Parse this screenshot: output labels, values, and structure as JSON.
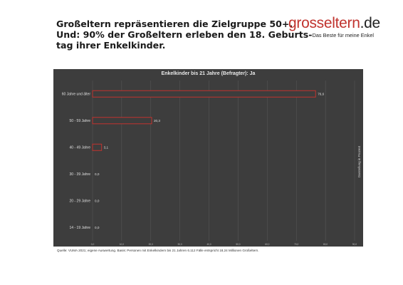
{
  "header": {
    "headline_lines": [
      "Großeltern repräsentieren die Zielgruppe 50+.",
      "Und: 90% der Großeltern erleben den 18. Geburts-",
      "tag ihrer Enkelkinder."
    ]
  },
  "logo": {
    "word": "grosseltern",
    "tld": ".de",
    "tagline": "Das Beste für meine Enkel"
  },
  "chart_data": {
    "type": "bar",
    "orientation": "horizontal",
    "title": "Enkelkinder bis 21 Jahre (Befragter): Ja",
    "categories": [
      "60 Jahre und älter",
      "50 - 59 Jahre",
      "40 - 49 Jahre",
      "30 - 39 Jahre",
      "20 - 29 Jahre",
      "14 - 19 Jahre"
    ],
    "values": [
      76.6,
      20.3,
      3.1,
      0.0,
      0.0,
      0.0
    ],
    "value_labels": [
      "76,6",
      "20,3",
      "3,1",
      "0,0",
      "0,0",
      "0,0"
    ],
    "xlim": [
      0,
      90
    ],
    "x_ticks": [
      "0,0",
      "10,0",
      "20,0",
      "30,0",
      "40,0",
      "50,0",
      "60,0",
      "70,0",
      "80,0",
      "90,0"
    ],
    "side_label": "Darstellung in Prozent",
    "grid": true,
    "colors": {
      "background": "#3d3d3d",
      "bar_outline": "#c0332e",
      "bar_fill": "#3d3d3d",
      "text": "#e0e0e0"
    }
  },
  "footer": {
    "source": "Quelle: VUMA 2021; eigene Auswertung. Basis: Personen mit Enkelkindern bis 21 Jahren  6.112 Fälle entspricht 18,24 Millionen Großeltern."
  }
}
